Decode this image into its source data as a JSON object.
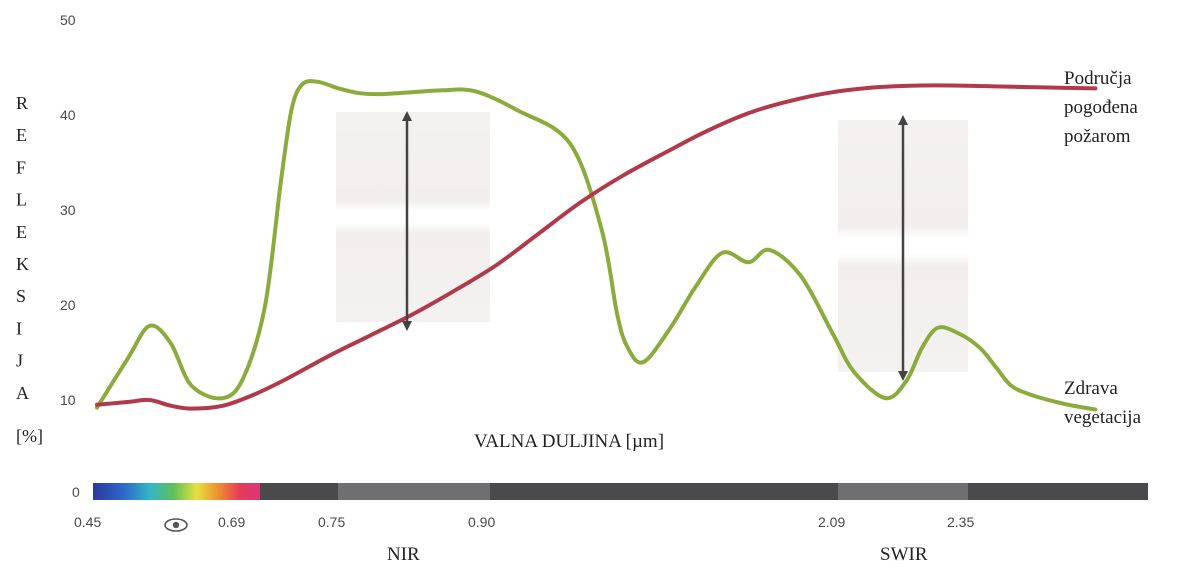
{
  "chart_data": {
    "type": "line",
    "ylabel_letters": [
      "R",
      "E",
      "F",
      "L",
      "E",
      "K",
      "S",
      "I",
      "J",
      "A"
    ],
    "ylabel_unit": "[%]",
    "xlabel": "VALNA DULJINA [µm]",
    "y_ticks": [
      "50",
      "40",
      "30",
      "20",
      "10"
    ],
    "y_zero": "0",
    "ylim": [
      10,
      50
    ],
    "spectrum_ticks": [
      "0.45",
      "0.69",
      "0.75",
      "0.90",
      "2.09",
      "2.35"
    ],
    "eye_icon": "eye-icon",
    "bands": {
      "nir": "NIR",
      "swir": "SWIR"
    },
    "series": [
      {
        "name_lines": [
          "Zdrava",
          "vegetacija"
        ],
        "color": "#8bab3c",
        "x": [
          0.0,
          0.03,
          0.05,
          0.07,
          0.09,
          0.12,
          0.14,
          0.16,
          0.175,
          0.185,
          0.195,
          0.21,
          0.23,
          0.25,
          0.27,
          0.3,
          0.33,
          0.36,
          0.4,
          0.45,
          0.48,
          0.495,
          0.505,
          0.52,
          0.545,
          0.57,
          0.595,
          0.62,
          0.64,
          0.67,
          0.7,
          0.72,
          0.75,
          0.77,
          0.785,
          0.8,
          0.82,
          0.84,
          0.855,
          0.87,
          0.89,
          0.92,
          0.95
        ],
        "y": [
          9.2,
          14.5,
          17.8,
          16.0,
          11.5,
          10.2,
          12.5,
          20.0,
          33.0,
          40.5,
          43.2,
          43.5,
          42.8,
          42.3,
          42.2,
          42.4,
          42.6,
          42.5,
          40.5,
          37.0,
          28.0,
          19.0,
          15.5,
          14.0,
          17.5,
          22.0,
          25.5,
          24.5,
          25.8,
          23.0,
          17.0,
          13.0,
          10.2,
          12.0,
          15.5,
          17.6,
          17.0,
          15.5,
          13.5,
          11.5,
          10.5,
          9.6,
          9.0
        ]
      },
      {
        "name_lines": [
          "Područja",
          "pogođena",
          "požarom"
        ],
        "color": "#b03a4a",
        "x": [
          0.0,
          0.03,
          0.05,
          0.07,
          0.09,
          0.12,
          0.15,
          0.18,
          0.22,
          0.26,
          0.3,
          0.34,
          0.38,
          0.42,
          0.46,
          0.5,
          0.54,
          0.58,
          0.62,
          0.66,
          0.7,
          0.74,
          0.78,
          0.82,
          0.86,
          0.9,
          0.95
        ],
        "y": [
          9.5,
          9.8,
          10.0,
          9.4,
          9.1,
          9.4,
          10.6,
          12.2,
          14.6,
          16.8,
          19.0,
          21.5,
          24.2,
          27.5,
          30.8,
          33.6,
          36.0,
          38.3,
          40.2,
          41.5,
          42.4,
          42.9,
          43.1,
          43.1,
          43.0,
          42.9,
          42.8
        ]
      }
    ]
  }
}
